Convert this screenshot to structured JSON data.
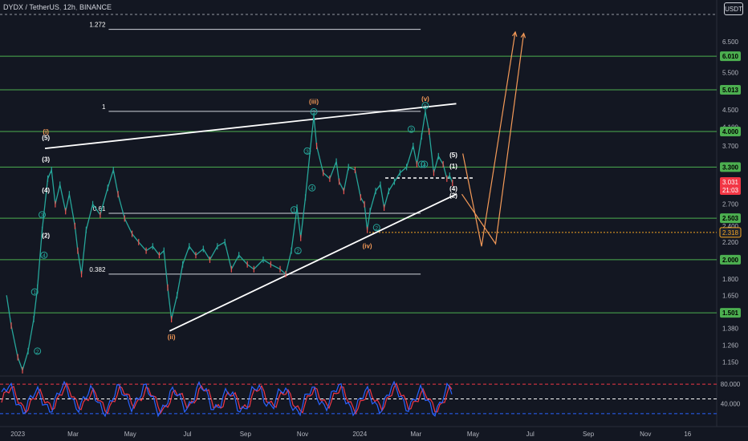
{
  "header": {
    "symbol": "DYDX / TetherUS",
    "interval": "12h",
    "exchange": "BINANCE",
    "currency_unit": "USDT"
  },
  "chart_data": {
    "type": "line",
    "price_scale": "log",
    "ylim": [
      1.08,
      7.8
    ],
    "price_ticks": [
      "6.500",
      "5.500",
      "4.500",
      "4.100",
      "3.700",
      "2.700",
      "2.400",
      "2.200",
      "1.800",
      "1.650",
      "1.380",
      "1.260",
      "1.150"
    ],
    "x_labels": [
      "2023",
      "Mar",
      "May",
      "Jul",
      "Sep",
      "Nov",
      "2024",
      "Mar",
      "May",
      "Jul",
      "Sep",
      "Nov",
      "16"
    ],
    "price_series": [
      [
        "2022-12-20",
        1.65
      ],
      [
        "2022-12-25",
        1.4
      ],
      [
        "2023-01-01",
        1.18
      ],
      [
        "2023-01-06",
        1.1
      ],
      [
        "2023-01-12",
        1.22
      ],
      [
        "2023-01-18",
        1.45
      ],
      [
        "2023-01-22",
        1.72
      ],
      [
        "2023-01-27",
        2.35
      ],
      [
        "2023-02-02",
        3.1
      ],
      [
        "2023-02-06",
        3.25
      ],
      [
        "2023-02-10",
        2.7
      ],
      [
        "2023-02-15",
        3.0
      ],
      [
        "2023-02-21",
        2.6
      ],
      [
        "2023-02-25",
        2.85
      ],
      [
        "2023-03-03",
        2.4
      ],
      [
        "2023-03-06",
        2.1
      ],
      [
        "2023-03-10",
        1.85
      ],
      [
        "2023-03-15",
        2.35
      ],
      [
        "2023-03-22",
        2.7
      ],
      [
        "2023-03-30",
        2.55
      ],
      [
        "2023-04-07",
        2.95
      ],
      [
        "2023-04-13",
        3.25
      ],
      [
        "2023-04-18",
        2.85
      ],
      [
        "2023-04-25",
        2.5
      ],
      [
        "2023-05-03",
        2.3
      ],
      [
        "2023-05-10",
        2.2
      ],
      [
        "2023-05-18",
        2.1
      ],
      [
        "2023-05-25",
        2.15
      ],
      [
        "2023-06-01",
        2.05
      ],
      [
        "2023-06-06",
        2.1
      ],
      [
        "2023-06-10",
        1.72
      ],
      [
        "2023-06-14",
        1.45
      ],
      [
        "2023-06-20",
        1.65
      ],
      [
        "2023-06-26",
        1.95
      ],
      [
        "2023-07-03",
        2.15
      ],
      [
        "2023-07-10",
        2.05
      ],
      [
        "2023-07-18",
        2.12
      ],
      [
        "2023-07-25",
        2.0
      ],
      [
        "2023-08-02",
        2.15
      ],
      [
        "2023-08-10",
        2.2
      ],
      [
        "2023-08-17",
        1.9
      ],
      [
        "2023-08-25",
        2.05
      ],
      [
        "2023-09-03",
        1.95
      ],
      [
        "2023-09-10",
        1.9
      ],
      [
        "2023-09-20",
        2.0
      ],
      [
        "2023-09-28",
        1.95
      ],
      [
        "2023-10-08",
        1.9
      ],
      [
        "2023-10-14",
        1.85
      ],
      [
        "2023-10-20",
        2.1
      ],
      [
        "2023-10-26",
        2.65
      ],
      [
        "2023-10-30",
        2.25
      ],
      [
        "2023-11-04",
        2.8
      ],
      [
        "2023-11-09",
        3.6
      ],
      [
        "2023-11-13",
        4.35
      ],
      [
        "2023-11-16",
        3.7
      ],
      [
        "2023-11-23",
        3.2
      ],
      [
        "2023-11-30",
        3.1
      ],
      [
        "2023-12-07",
        3.4
      ],
      [
        "2023-12-10",
        3.05
      ],
      [
        "2023-12-15",
        2.9
      ],
      [
        "2023-12-20",
        3.3
      ],
      [
        "2023-12-27",
        3.25
      ],
      [
        "2024-01-02",
        2.8
      ],
      [
        "2024-01-06",
        2.7
      ],
      [
        "2024-01-09",
        2.35
      ],
      [
        "2024-01-12",
        2.6
      ],
      [
        "2024-01-18",
        2.9
      ],
      [
        "2024-01-23",
        3.0
      ],
      [
        "2024-01-27",
        2.65
      ],
      [
        "2024-02-01",
        2.9
      ],
      [
        "2024-02-07",
        3.05
      ],
      [
        "2024-02-13",
        3.2
      ],
      [
        "2024-02-20",
        3.3
      ],
      [
        "2024-02-27",
        3.7
      ],
      [
        "2024-03-02",
        3.35
      ],
      [
        "2024-03-07",
        3.9
      ],
      [
        "2024-03-11",
        4.45
      ],
      [
        "2024-03-15",
        4.0
      ],
      [
        "2024-03-20",
        3.2
      ],
      [
        "2024-03-25",
        3.5
      ],
      [
        "2024-03-30",
        3.35
      ],
      [
        "2024-04-03",
        3.1
      ],
      [
        "2024-04-06",
        3.15
      ],
      [
        "2024-04-09",
        3.03
      ]
    ],
    "horizontal_levels": [
      {
        "label": "5.013",
        "value": 5.013,
        "color": "#4caf50"
      },
      {
        "label": "4.000",
        "value": 4.0,
        "color": "#4caf50"
      },
      {
        "label": "3.300",
        "value": 3.3,
        "color": "#4caf50"
      },
      {
        "label": "2.503",
        "value": 2.503,
        "color": "#4caf50"
      },
      {
        "label": "2.000",
        "value": 2.0,
        "color": "#4caf50"
      },
      {
        "label": "1.501",
        "value": 1.501,
        "color": "#4caf50"
      }
    ],
    "top_level": {
      "label": "6.010",
      "value": 6.01,
      "color": "#4caf50"
    },
    "last_price": {
      "label": "3.031",
      "countdown": "21:03",
      "value": 3.031,
      "color": "#f23645"
    },
    "dashed_level": {
      "label": "2.318",
      "value": 2.318,
      "color": "#f5a623"
    },
    "fibonacci": [
      {
        "label": "1.272",
        "value": 6.95,
        "from": "2023-04-08",
        "to": "2024-03-06"
      },
      {
        "label": "1",
        "value": 4.46,
        "from": "2023-04-08",
        "to": "2024-03-06"
      },
      {
        "label": "0.61",
        "value": 2.57,
        "from": "2023-04-08",
        "to": "2024-03-06"
      },
      {
        "label": "0.382",
        "value": 1.85,
        "from": "2023-04-08",
        "to": "2024-03-06"
      }
    ],
    "trendlines": [
      {
        "from": [
          "2023-01-30",
          3.65
        ],
        "to": [
          "2024-04-13",
          4.65
        ]
      },
      {
        "from": [
          "2023-06-12",
          1.36
        ],
        "to": [
          "2024-04-13",
          2.85
        ]
      }
    ],
    "wave_labels": [
      {
        "text": "(i)",
        "date": "2023-01-31",
        "price": 3.95,
        "color": "#f59a58"
      },
      {
        "text": "(ii)",
        "date": "2023-06-14",
        "price": 1.3,
        "color": "#f59a58"
      },
      {
        "text": "(iii)",
        "date": "2023-11-13",
        "price": 4.65,
        "color": "#f59a58"
      },
      {
        "text": "(iv)",
        "date": "2024-01-09",
        "price": 2.13,
        "color": "#f59a58"
      },
      {
        "text": "(v)",
        "date": "2024-03-11",
        "price": 4.72,
        "color": "#f59a58"
      },
      {
        "text": "(5)",
        "date": "2024-04-10",
        "price": 3.48,
        "color": "#ffffff"
      },
      {
        "text": "(1)",
        "date": "2024-04-10",
        "price": 3.28,
        "color": "#ffffff"
      },
      {
        "text": "(4)",
        "date": "2024-04-10",
        "price": 2.9,
        "color": "#ffffff"
      },
      {
        "text": "(2)",
        "date": "2024-04-10",
        "price": 2.8,
        "color": "#ffffff"
      },
      {
        "text": "(3)",
        "date": "2023-01-31",
        "price": 3.4,
        "color": "#ffffff"
      },
      {
        "text": "(4)",
        "date": "2023-01-31",
        "price": 2.88,
        "color": "#ffffff"
      },
      {
        "text": "(2)",
        "date": "2023-01-31",
        "price": 2.25,
        "color": "#ffffff"
      },
      {
        "text": "(5)",
        "date": "2023-01-31",
        "price": 3.82,
        "color": "#ffffff"
      }
    ],
    "circled_labels": [
      {
        "text": "1",
        "date": "2023-01-19",
        "price": 1.68
      },
      {
        "text": "2",
        "date": "2023-01-22",
        "price": 1.22
      },
      {
        "text": "3",
        "date": "2023-01-27",
        "price": 2.55
      },
      {
        "text": "4",
        "date": "2023-01-29",
        "price": 2.05
      },
      {
        "text": "1",
        "date": "2023-10-23",
        "price": 2.62
      },
      {
        "text": "2",
        "date": "2023-10-27",
        "price": 2.1
      },
      {
        "text": "3",
        "date": "2023-11-06",
        "price": 3.6
      },
      {
        "text": "4",
        "date": "2023-11-11",
        "price": 2.95
      },
      {
        "text": "5",
        "date": "2023-11-13",
        "price": 4.45
      },
      {
        "text": "3",
        "date": "2024-02-25",
        "price": 4.05
      },
      {
        "text": "5",
        "date": "2024-03-11",
        "price": 4.6
      },
      {
        "text": "4",
        "date": "2024-03-10",
        "price": 3.35
      },
      {
        "text": "1",
        "date": "2024-03-07",
        "price": 3.35
      },
      {
        "text": "2",
        "date": "2024-01-19",
        "price": 2.38
      }
    ],
    "projection_paths": [
      {
        "points": [
          [
            "2024-04-20",
            3.55
          ],
          [
            "2024-05-10",
            2.15
          ],
          [
            "2024-06-15",
            6.85
          ]
        ]
      },
      {
        "points": [
          [
            "2024-04-19",
            2.85
          ],
          [
            "2024-05-25",
            2.18
          ],
          [
            "2024-06-24",
            6.8
          ]
        ]
      }
    ],
    "indicator": {
      "ticks": [
        "80.000",
        "40.000"
      ],
      "upper": 80,
      "mid": 50,
      "lower": 20,
      "color_fast": "#2962ff",
      "color_slow": "#f23645"
    }
  }
}
